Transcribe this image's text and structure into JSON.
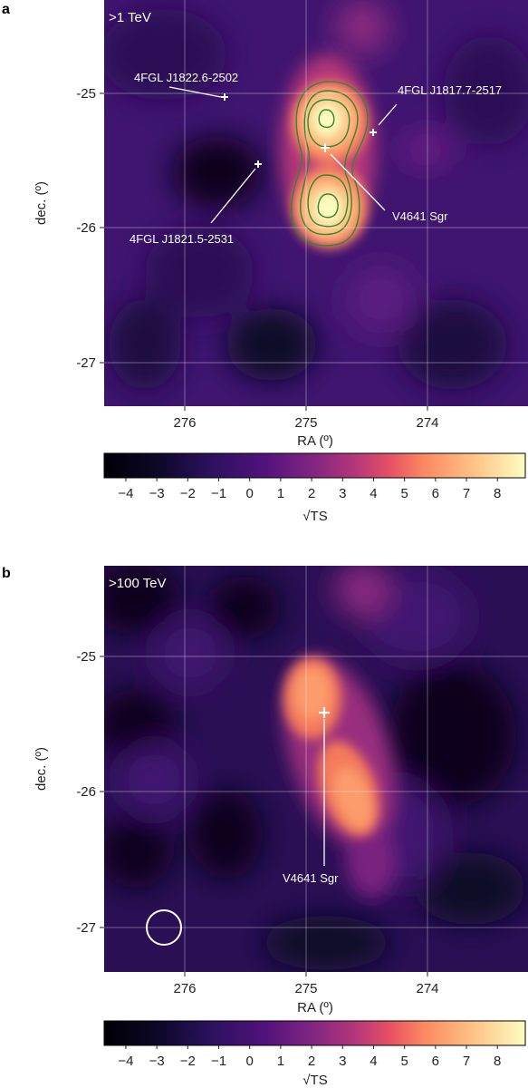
{
  "panels": [
    {
      "letter": "a",
      "energy_label": ">1 TeV",
      "xlabel": "RA (º)",
      "ylabel": "dec. (º)",
      "xticks": [
        276,
        275,
        274
      ],
      "yticks": [
        -25,
        -26,
        -27
      ],
      "annotations": [
        {
          "text": "4FGL J1822.6-2502",
          "ra": 275.67,
          "dec": -25.04
        },
        {
          "text": "4FGL J1817.7-2517",
          "ra": 274.43,
          "dec": -25.29
        },
        {
          "text": "4FGL J1821.5-2531",
          "ra": 275.39,
          "dec": -25.53
        },
        {
          "text": "V4641 Sgr",
          "ra": 274.84,
          "dec": -25.41
        }
      ],
      "colorbar": {
        "ticks": [
          -4,
          -3,
          -2,
          -1,
          0,
          1,
          2,
          3,
          4,
          5,
          6,
          7,
          8
        ],
        "label": "√TS",
        "range": [
          -4.7,
          8.9
        ]
      }
    },
    {
      "letter": "b",
      "energy_label": ">100 TeV",
      "xlabel": "RA (º)",
      "ylabel": "dec. (º)",
      "xticks": [
        276,
        275,
        274
      ],
      "yticks": [
        -25,
        -26,
        -27
      ],
      "annotations": [
        {
          "text": "V4641 Sgr",
          "ra": 274.84,
          "dec": -25.41
        }
      ],
      "colorbar": {
        "ticks": [
          -4,
          -3,
          -2,
          -1,
          0,
          1,
          2,
          3,
          4,
          5,
          6,
          7,
          8
        ],
        "label": "√TS",
        "range": [
          -4.7,
          8.9
        ]
      }
    }
  ],
  "chart_data": [
    {
      "type": "heatmap",
      "title": "",
      "energy_threshold": ">1 TeV",
      "xlabel": "RA (º)",
      "ylabel": "dec. (º)",
      "xlim": [
        276.35,
        273.2
      ],
      "ylim": [
        -27.3,
        -24.35
      ],
      "x_inverted": true,
      "grid": true,
      "colormap": "magma",
      "colorbar": {
        "label": "√TS",
        "range": [
          -4.7,
          8.9
        ],
        "ticks": [
          -4,
          -3,
          -2,
          -1,
          0,
          1,
          2,
          3,
          4,
          5,
          6,
          7,
          8
        ]
      },
      "emission_peaks_sqrtTS": [
        {
          "ra": 274.82,
          "dec": -25.2,
          "value": 8.5
        },
        {
          "ra": 274.82,
          "dec": -25.85,
          "value": 8.5
        }
      ],
      "contours": "green, around the extended source",
      "sources": [
        {
          "name": "4FGL J1822.6-2502",
          "ra": 275.67,
          "dec": -25.04
        },
        {
          "name": "4FGL J1817.7-2517",
          "ra": 274.43,
          "dec": -25.29
        },
        {
          "name": "4FGL J1821.5-2531",
          "ra": 275.39,
          "dec": -25.53
        },
        {
          "name": "V4641 Sgr",
          "ra": 274.84,
          "dec": -25.41
        }
      ]
    },
    {
      "type": "heatmap",
      "title": "",
      "energy_threshold": ">100 TeV",
      "xlabel": "RA (º)",
      "ylabel": "dec. (º)",
      "xlim": [
        276.35,
        273.2
      ],
      "ylim": [
        -27.3,
        -24.35
      ],
      "x_inverted": true,
      "grid": true,
      "colormap": "magma",
      "colorbar": {
        "label": "√TS",
        "range": [
          -4.7,
          8.9
        ],
        "ticks": [
          -4,
          -3,
          -2,
          -1,
          0,
          1,
          2,
          3,
          4,
          5,
          6,
          7,
          8
        ]
      },
      "emission_peaks_sqrtTS": [
        {
          "ra": 274.95,
          "dec": -25.2,
          "value": 5.3
        },
        {
          "ra": 274.7,
          "dec": -25.9,
          "value": 5.4
        }
      ],
      "sources": [
        {
          "name": "V4641 Sgr",
          "ra": 274.84,
          "dec": -25.41
        }
      ],
      "psf_circle": {
        "ra": 276.15,
        "dec": -27.0
      }
    }
  ]
}
